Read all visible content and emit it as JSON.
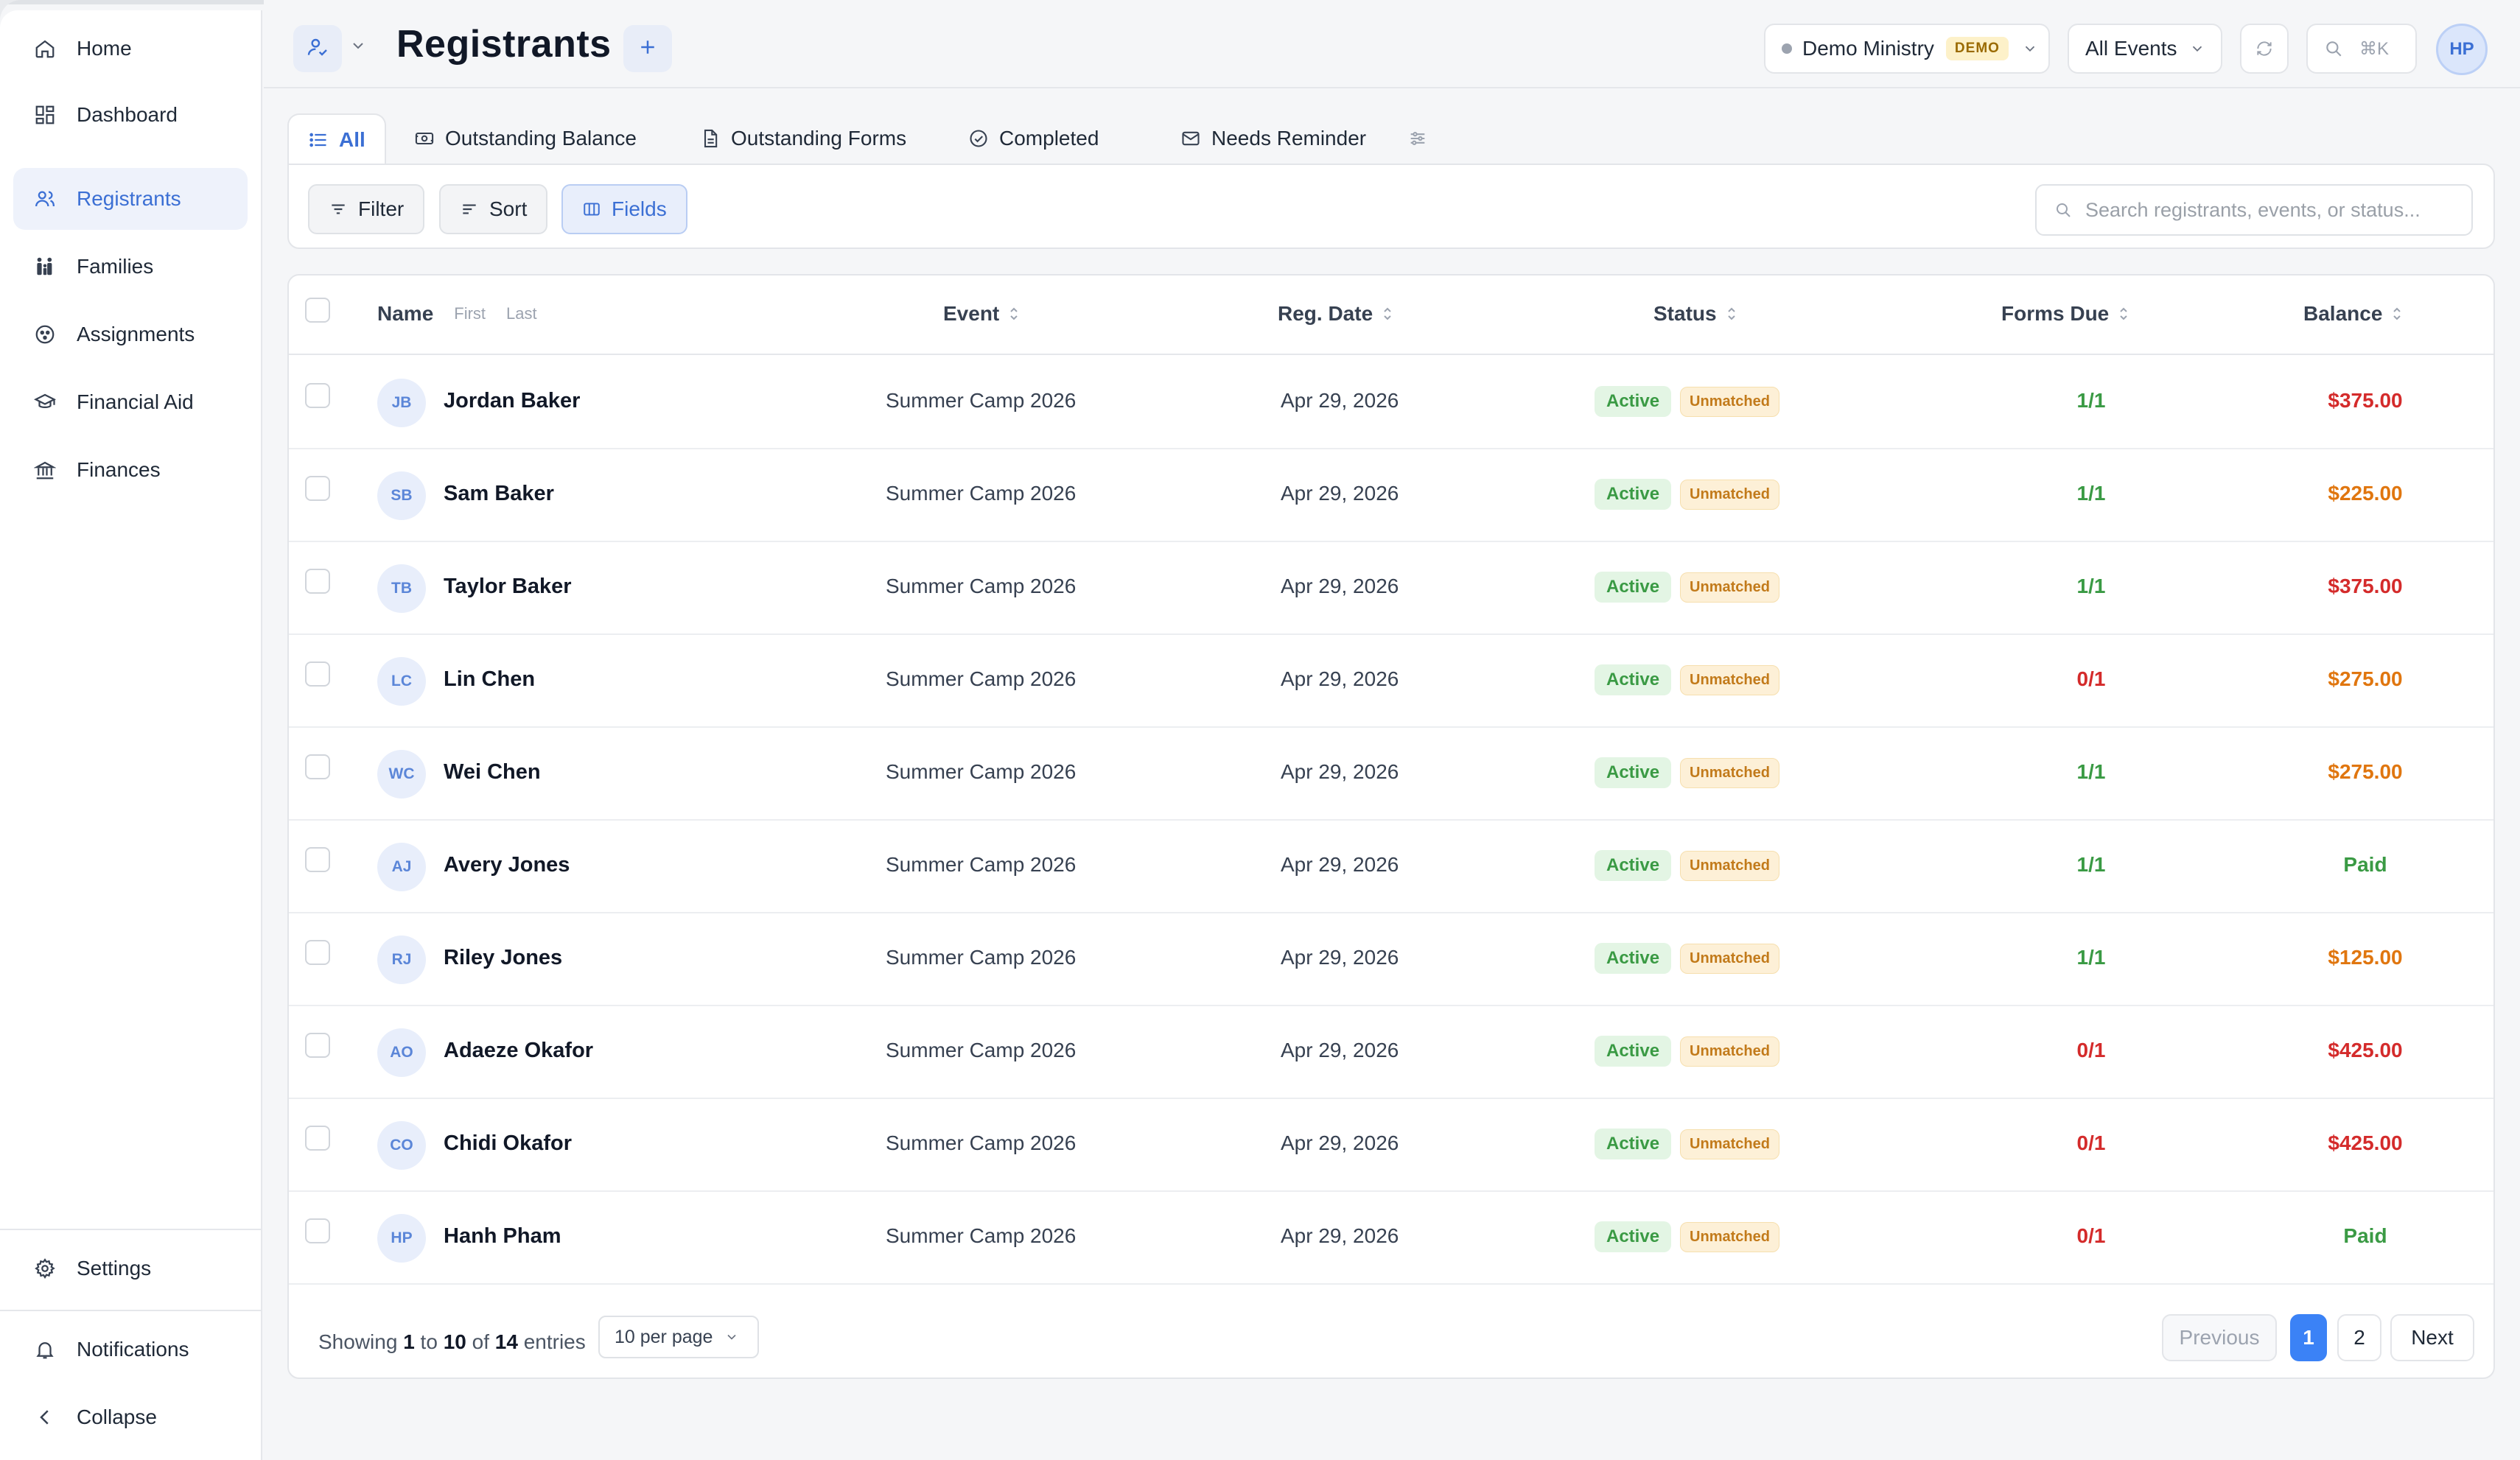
{
  "sidebar": {
    "top_items": [
      {
        "label": "Home",
        "icon": "home-icon"
      },
      {
        "label": "Dashboard",
        "icon": "dashboard-icon"
      },
      {
        "label": "Registrants",
        "icon": "users-icon",
        "active": true
      },
      {
        "label": "Families",
        "icon": "family-icon"
      },
      {
        "label": "Assignments",
        "icon": "assignments-icon"
      },
      {
        "label": "Financial Aid",
        "icon": "graduation-cap-icon"
      },
      {
        "label": "Finances",
        "icon": "bank-icon"
      }
    ],
    "settings_label": "Settings",
    "notifications_label": "Notifications",
    "collapse_label": "Collapse"
  },
  "header": {
    "title": "Registrants",
    "ministry_name": "Demo Ministry",
    "ministry_badge": "DEMO",
    "events_select": "All Events",
    "search_shortcut": "⌘K",
    "user_initials": "HP"
  },
  "tabs": [
    {
      "label": "All",
      "icon": "list-icon",
      "active": true
    },
    {
      "label": "Outstanding Balance",
      "icon": "money-icon"
    },
    {
      "label": "Outstanding Forms",
      "icon": "document-icon"
    },
    {
      "label": "Completed",
      "icon": "check-circle-icon"
    },
    {
      "label": "Needs Reminder",
      "icon": "mail-icon"
    }
  ],
  "toolbar": {
    "filter_label": "Filter",
    "sort_label": "Sort",
    "fields_label": "Fields",
    "search_placeholder": "Search registrants, events, or status..."
  },
  "table": {
    "columns": {
      "name": "Name",
      "name_first": "First",
      "name_last": "Last",
      "event": "Event",
      "reg_date": "Reg. Date",
      "status": "Status",
      "forms_due": "Forms Due",
      "balance": "Balance"
    },
    "rows": [
      {
        "initials": "JB",
        "name": "Jordan Baker",
        "event": "Summer Camp 2026",
        "reg_date": "Apr 29, 2026",
        "status": "Active",
        "match": "Unmatched",
        "forms": "1/1",
        "forms_color": "green",
        "balance": "$375.00",
        "balance_color": "red"
      },
      {
        "initials": "SB",
        "name": "Sam Baker",
        "event": "Summer Camp 2026",
        "reg_date": "Apr 29, 2026",
        "status": "Active",
        "match": "Unmatched",
        "forms": "1/1",
        "forms_color": "green",
        "balance": "$225.00",
        "balance_color": "orange"
      },
      {
        "initials": "TB",
        "name": "Taylor Baker",
        "event": "Summer Camp 2026",
        "reg_date": "Apr 29, 2026",
        "status": "Active",
        "match": "Unmatched",
        "forms": "1/1",
        "forms_color": "green",
        "balance": "$375.00",
        "balance_color": "red"
      },
      {
        "initials": "LC",
        "name": "Lin Chen",
        "event": "Summer Camp 2026",
        "reg_date": "Apr 29, 2026",
        "status": "Active",
        "match": "Unmatched",
        "forms": "0/1",
        "forms_color": "red",
        "balance": "$275.00",
        "balance_color": "orange"
      },
      {
        "initials": "WC",
        "name": "Wei Chen",
        "event": "Summer Camp 2026",
        "reg_date": "Apr 29, 2026",
        "status": "Active",
        "match": "Unmatched",
        "forms": "1/1",
        "forms_color": "green",
        "balance": "$275.00",
        "balance_color": "orange"
      },
      {
        "initials": "AJ",
        "name": "Avery Jones",
        "event": "Summer Camp 2026",
        "reg_date": "Apr 29, 2026",
        "status": "Active",
        "match": "Unmatched",
        "forms": "1/1",
        "forms_color": "green",
        "balance": "Paid",
        "balance_color": "green"
      },
      {
        "initials": "RJ",
        "name": "Riley Jones",
        "event": "Summer Camp 2026",
        "reg_date": "Apr 29, 2026",
        "status": "Active",
        "match": "Unmatched",
        "forms": "1/1",
        "forms_color": "green",
        "balance": "$125.00",
        "balance_color": "orange"
      },
      {
        "initials": "AO",
        "name": "Adaeze Okafor",
        "event": "Summer Camp 2026",
        "reg_date": "Apr 29, 2026",
        "status": "Active",
        "match": "Unmatched",
        "forms": "0/1",
        "forms_color": "red",
        "balance": "$425.00",
        "balance_color": "red"
      },
      {
        "initials": "CO",
        "name": "Chidi Okafor",
        "event": "Summer Camp 2026",
        "reg_date": "Apr 29, 2026",
        "status": "Active",
        "match": "Unmatched",
        "forms": "0/1",
        "forms_color": "red",
        "balance": "$425.00",
        "balance_color": "red"
      },
      {
        "initials": "HP",
        "name": "Hanh Pham",
        "event": "Summer Camp 2026",
        "reg_date": "Apr 29, 2026",
        "status": "Active",
        "match": "Unmatched",
        "forms": "0/1",
        "forms_color": "red",
        "balance": "Paid",
        "balance_color": "green"
      }
    ]
  },
  "footer": {
    "showing_prefix": "Showing",
    "range_start": "1",
    "to_word": "to",
    "range_end": "10",
    "of_word": "of",
    "total": "14",
    "entries_word": "entries",
    "per_page": "10 per page",
    "previous_label": "Previous",
    "pages": [
      "1",
      "2"
    ],
    "current_page": "1",
    "next_label": "Next"
  },
  "colors": {
    "accent": "#3b6fd4",
    "active_green": "#3a9a44",
    "balance_red": "#d42b2b",
    "balance_orange": "#e0760f",
    "unmatched_amber": "#c27a1a"
  }
}
